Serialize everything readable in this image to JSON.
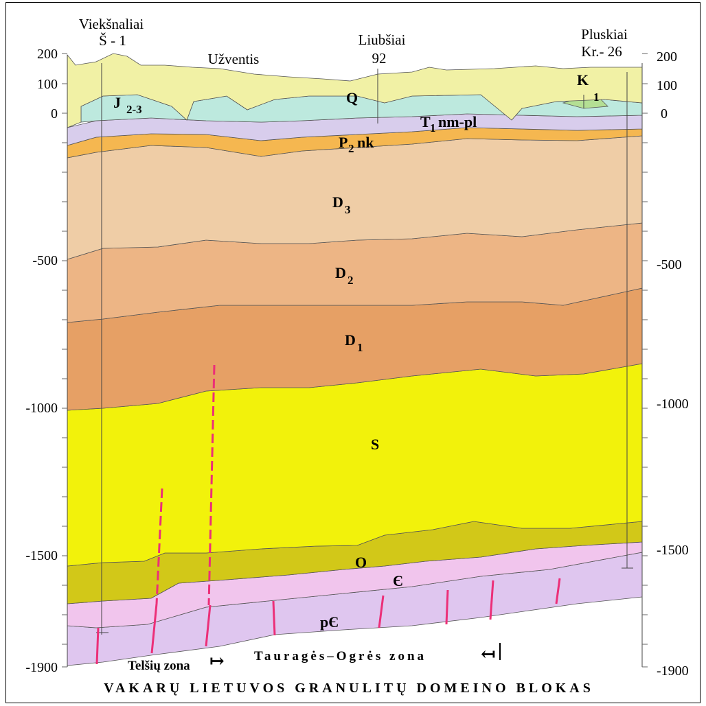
{
  "wells": {
    "left": {
      "name": "Viekšnaliai",
      "code": "Š - 1"
    },
    "left_mid": {
      "name": "Užventis"
    },
    "center": {
      "name": "Liubšiai",
      "code": "92"
    },
    "right": {
      "name": "Pluskiai",
      "code": "Kr.- 26"
    }
  },
  "axis": {
    "left_ticks": [
      "200",
      "100",
      "0",
      "-500",
      "-1000",
      "-1500",
      "-1900"
    ],
    "right_ticks": [
      "200",
      "100",
      "0",
      "-500",
      "-1000",
      "-1500",
      "-1900"
    ]
  },
  "layers": {
    "Q": "Q",
    "J": {
      "main": "J",
      "sub": "2-3"
    },
    "K": {
      "main": "K",
      "sub": "1"
    },
    "T": {
      "main": "T",
      "sub": "1",
      "rest": "nm-pl"
    },
    "P": {
      "main": "P",
      "sub": "2",
      "rest": "nk"
    },
    "D3": {
      "main": "D",
      "sub": "3"
    },
    "D2": {
      "main": "D",
      "sub": "2"
    },
    "D1": {
      "main": "D",
      "sub": "1"
    },
    "S": "S",
    "O": "O",
    "Cm": "Є",
    "pCm": "pЄ"
  },
  "zones": {
    "telsiai": "Telšių zona",
    "taurage": "Tauragės–Ogrės zona",
    "arrow_right": "↦",
    "arrow_left": "↤"
  },
  "footer": "VAKARŲ LIETUVOS GRANULITŲ DOMEINO BLOKAS",
  "colors": {
    "Q": "#f1f1a5",
    "J": "#bde9de",
    "K": "#b4df94",
    "T": "#d8cdec",
    "P": "#f5b750",
    "D3": "#efcda6",
    "D2": "#edb585",
    "D1": "#e6a065",
    "S": "#f2f20b",
    "O": "#d2c818",
    "Cm": "#f1c5ed",
    "pCm": "#dfc6ef",
    "fault": "#ec2f78"
  }
}
